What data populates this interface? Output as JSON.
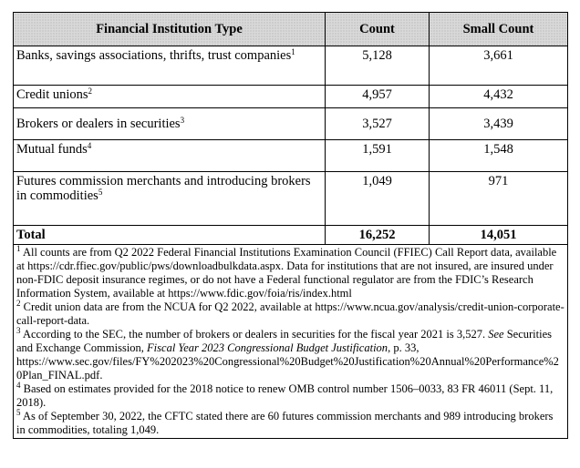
{
  "table": {
    "headers": [
      "Financial Institution Type",
      "Count",
      "Small Count"
    ],
    "rows": [
      {
        "label": "Banks, savings associations, thrifts, trust companies",
        "note": "1",
        "count": "5,128",
        "small_count": "3,661"
      },
      {
        "label": "Credit unions",
        "note": "2",
        "count": "4,957",
        "small_count": "4,432"
      },
      {
        "label": "Brokers or dealers in securities",
        "note": "3",
        "count": "3,527",
        "small_count": "3,439"
      },
      {
        "label": "Mutual funds",
        "note": "4",
        "count": "1,591",
        "small_count": "1,548"
      },
      {
        "label": "Futures commission merchants and introducing brokers in commodities",
        "note": "5",
        "count": "1,049",
        "small_count": "971"
      }
    ],
    "total": {
      "label": "Total",
      "count": "16,252",
      "small_count": "14,051"
    }
  },
  "footnotes": [
    {
      "marker": "1",
      "segments": [
        "All counts are from Q2 2022 Federal Financial Institutions Examination Council (FFIEC) Call Report data, available at https://cdr.ffiec.gov/public/pws/downloadbulkdata.aspx.  Data for institutions that are not insured, are insured under non-FDIC deposit insurance regimes, or do not have a Federal functional regulator are from the FDIC’s Research Information System, available at https://www.fdic.gov/foia/ris/index.html"
      ]
    },
    {
      "marker": "2",
      "segments": [
        "Credit union data are from the NCUA for Q2 2022, available at https://www.ncua.gov/analysis/credit-union-corporate-call-report-data."
      ]
    },
    {
      "marker": "3",
      "segments": [
        "According to the SEC, the number of brokers or dealers in securities for the fiscal year 2021 is 3,527. ",
        "See",
        " Securities and Exchange Commission, ",
        "Fiscal Year 2023 Congressional Budget Justification",
        ", p. 33, https://www.sec.gov/files/FY%202023%20Congressional%20Budget%20Justification%20Annual%20Performance%20Plan_FINAL.pdf."
      ]
    },
    {
      "marker": "4",
      "segments": [
        "Based on estimates provided for the 2018 notice to renew OMB control number 1506–0033, 83 FR 46011 (Sept. 11, 2018)."
      ]
    },
    {
      "marker": "5",
      "segments": [
        "As of September 30, 2022, the CFTC stated there are 60 futures commission merchants and 989 introducing brokers in commodities, totaling 1,049."
      ]
    }
  ]
}
